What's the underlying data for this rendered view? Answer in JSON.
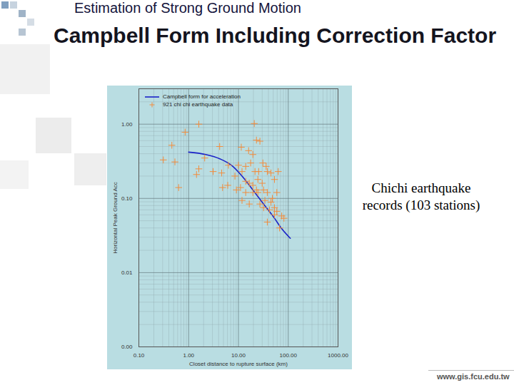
{
  "slide": {
    "header": "Estimation of Strong Ground Motion",
    "title": "Campbell Form Including Correction Factor",
    "note": "Chichi earthquake records (103 stations)",
    "footer": "www.gis.fcu.edu.tw"
  },
  "chart_data": {
    "type": "scatter",
    "x_label": "Closet distance to rupture surface (km)",
    "y_label": "Horizontal Peak Ground Acc",
    "log": true,
    "grid": true,
    "legend": "top-left",
    "xlim": [
      0.1,
      1000
    ],
    "xticks": [
      {
        "value": 0.1,
        "label": "0.10"
      },
      {
        "value": 1,
        "label": "1.00"
      },
      {
        "value": 10,
        "label": "10.00"
      },
      {
        "value": 100,
        "label": "100.00"
      },
      {
        "value": 1000,
        "label": "1000.00"
      }
    ],
    "ylim": [
      0.001,
      3
    ],
    "yticks": [
      {
        "value": 0.001,
        "label": "0.00"
      },
      {
        "value": 0.01,
        "label": "0.01"
      },
      {
        "value": 0.1,
        "label": "0.10"
      },
      {
        "value": 1,
        "label": "1.00"
      }
    ],
    "series": [
      {
        "name": "Campbell form for acceleration",
        "type": "line",
        "color": "#1a22c8",
        "line_style": "solid",
        "x": [
          1,
          2.2,
          4.3,
          7.2,
          11.8,
          19.5,
          32,
          53,
          74,
          110
        ],
        "values": [
          0.42,
          0.39,
          0.34,
          0.28,
          0.2,
          0.13,
          0.084,
          0.054,
          0.039,
          0.029
        ]
      },
      {
        "name": "921 chi chi earthquake data",
        "type": "scatter",
        "color": "#f28c3c",
        "marker": "plus",
        "x": [
          1.6,
          0.85,
          0.46,
          0.31,
          0.53,
          0.63,
          1.44,
          4.2,
          2.1,
          3.1,
          4.6,
          6.3,
          4.8,
          20.8,
          23,
          27,
          11.4,
          16,
          19.5,
          10,
          11.8,
          8.5,
          14,
          16.5,
          11,
          9.1,
          19.5,
          24.6,
          32,
          38,
          45,
          63,
          53,
          59,
          38,
          34,
          45,
          53,
          59,
          74,
          82,
          67,
          53,
          42,
          32,
          27,
          19.5,
          14,
          23,
          11.8,
          31,
          36,
          25.5,
          17.6,
          6.1,
          14,
          30,
          48,
          16.5,
          24.6,
          21.5,
          38,
          1.6
        ],
        "values": [
          1.0,
          0.78,
          0.52,
          0.33,
          0.31,
          0.14,
          0.21,
          0.5,
          0.35,
          0.23,
          0.22,
          0.28,
          0.14,
          1.02,
          0.61,
          0.59,
          0.49,
          0.44,
          0.39,
          0.28,
          0.23,
          0.2,
          0.17,
          0.16,
          0.14,
          0.13,
          0.12,
          0.12,
          0.13,
          0.23,
          0.22,
          0.23,
          0.18,
          0.12,
          0.12,
          0.094,
          0.089,
          0.075,
          0.067,
          0.058,
          0.054,
          0.04,
          0.06,
          0.07,
          0.075,
          0.084,
          0.15,
          0.12,
          0.13,
          0.094,
          0.3,
          0.27,
          0.23,
          0.3,
          0.15,
          0.27,
          0.16,
          0.1,
          0.084,
          0.18,
          0.23,
          0.048,
          0.25
        ]
      }
    ]
  }
}
